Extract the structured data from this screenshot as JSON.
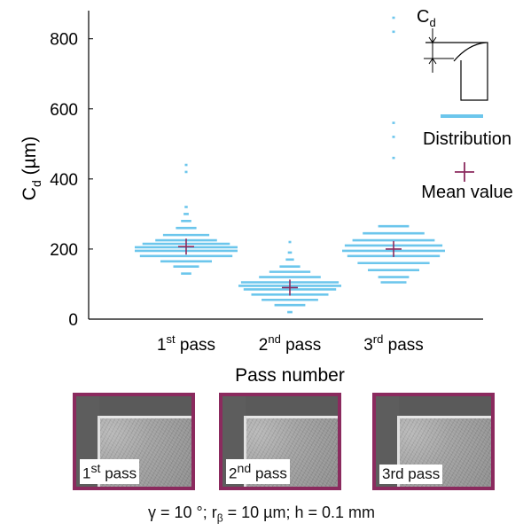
{
  "chart_data": {
    "type": "scatter",
    "ylabel_main": "C",
    "ylabel_sub": "d",
    "ylabel_unit": "(µm)",
    "xlabel": "Pass number",
    "ylim": [
      0,
      860
    ],
    "yticks": [
      0,
      200,
      400,
      600,
      800
    ],
    "categories": [
      {
        "base": "1",
        "sup": "st",
        "rest": "pass"
      },
      {
        "base": "2",
        "sup": "nd",
        "rest": "pass"
      },
      {
        "base": "3",
        "sup": "rd",
        "rest": "pass"
      }
    ],
    "distribution_color": "#6cc6ec",
    "mean_color": "#8b2a5e",
    "series": [
      {
        "mean": 207,
        "bins": [
          [
            130,
            0.1
          ],
          [
            150,
            0.25
          ],
          [
            165,
            0.5
          ],
          [
            180,
            0.9
          ],
          [
            195,
            1.0
          ],
          [
            205,
            1.0
          ],
          [
            215,
            0.85
          ],
          [
            225,
            0.6
          ],
          [
            240,
            0.45
          ],
          [
            260,
            0.2
          ],
          [
            280,
            0.1
          ],
          [
            300,
            0.05
          ],
          [
            320,
            0.03
          ],
          [
            420,
            0.02
          ],
          [
            440,
            0.02
          ]
        ]
      },
      {
        "mean": 90,
        "bins": [
          [
            20,
            0.05
          ],
          [
            40,
            0.3
          ],
          [
            55,
            0.55
          ],
          [
            70,
            0.75
          ],
          [
            85,
            0.9
          ],
          [
            95,
            1.0
          ],
          [
            105,
            0.95
          ],
          [
            120,
            0.6
          ],
          [
            135,
            0.4
          ],
          [
            150,
            0.2
          ],
          [
            170,
            0.08
          ],
          [
            190,
            0.04
          ],
          [
            220,
            0.02
          ]
        ]
      },
      {
        "mean": 200,
        "bins": [
          [
            105,
            0.25
          ],
          [
            120,
            0.3
          ],
          [
            140,
            0.5
          ],
          [
            160,
            0.7
          ],
          [
            180,
            0.9
          ],
          [
            195,
            1.0
          ],
          [
            210,
            0.95
          ],
          [
            225,
            0.8
          ],
          [
            245,
            0.6
          ],
          [
            265,
            0.3
          ],
          [
            460,
            0.02
          ],
          [
            520,
            0.02
          ],
          [
            560,
            0.02
          ],
          [
            820,
            0.02
          ],
          [
            860,
            0.02
          ]
        ]
      }
    ],
    "legend": {
      "distribution_label": "Distribution",
      "mean_label": "Mean value",
      "inset_label_main": "C",
      "inset_label_sub": "d"
    }
  },
  "panels": [
    {
      "base": "1",
      "sup": "st",
      "rest": " pass"
    },
    {
      "base": "2",
      "sup": "nd",
      "rest": " pass"
    },
    {
      "base": "3rd pass",
      "sup": "",
      "rest": ""
    }
  ],
  "footer": {
    "gamma": "γ = 10 °; r",
    "beta_sub": "β",
    "rest": " = 10 µm; h = 0.1 mm"
  }
}
